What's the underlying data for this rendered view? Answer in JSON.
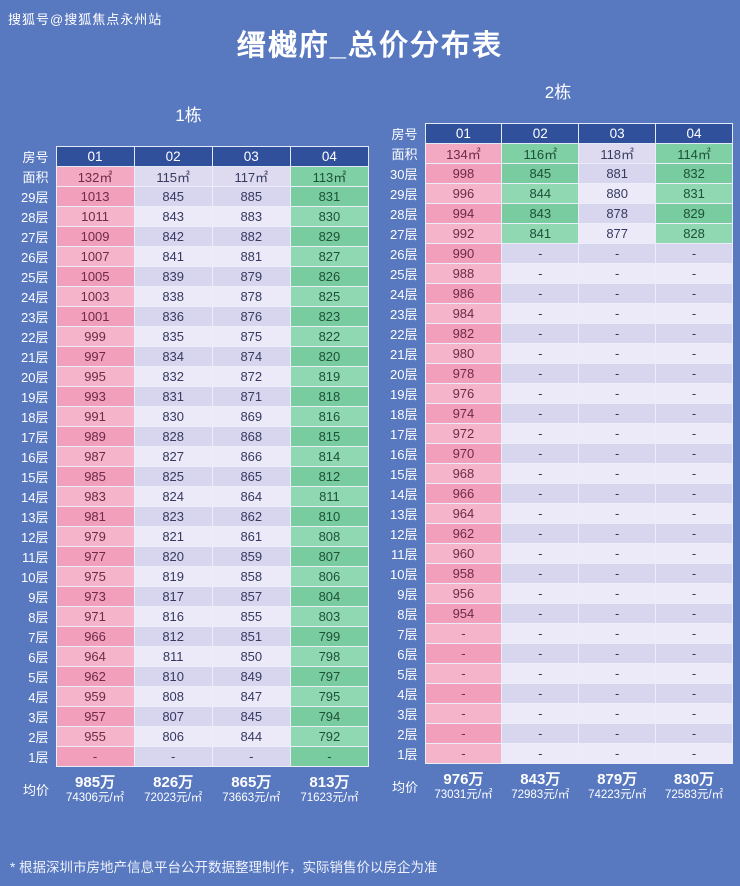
{
  "watermark": "搜狐号@搜狐焦点永州站",
  "title": "缙樾府_总价分布表",
  "footnote": "* 根据深圳市房地产信息平台公开数据整理制作，实际销售价以房企为准",
  "labels": {
    "room": "房号",
    "area": "面积",
    "avg": "均价"
  },
  "colors": {
    "background": "#5878c0",
    "header": "#30509c",
    "pink": "#f3a9c2",
    "lavender": "#dedbf1",
    "green": "#7fd0a5"
  },
  "chart_data": [
    {
      "type": "table",
      "title": "1栋",
      "rooms": [
        "01",
        "02",
        "03",
        "04"
      ],
      "areas": [
        "132㎡",
        "115㎡",
        "117㎡",
        "113㎡"
      ],
      "column_styles": [
        "pink",
        "lav",
        "lav",
        "green"
      ],
      "rows": [
        {
          "floor": "29层",
          "values": [
            "1013",
            "845",
            "885",
            "831"
          ]
        },
        {
          "floor": "28层",
          "values": [
            "1011",
            "843",
            "883",
            "830"
          ]
        },
        {
          "floor": "27层",
          "values": [
            "1009",
            "842",
            "882",
            "829"
          ]
        },
        {
          "floor": "26层",
          "values": [
            "1007",
            "841",
            "881",
            "827"
          ]
        },
        {
          "floor": "25层",
          "values": [
            "1005",
            "839",
            "879",
            "826"
          ]
        },
        {
          "floor": "24层",
          "values": [
            "1003",
            "838",
            "878",
            "825"
          ]
        },
        {
          "floor": "23层",
          "values": [
            "1001",
            "836",
            "876",
            "823"
          ]
        },
        {
          "floor": "22层",
          "values": [
            "999",
            "835",
            "875",
            "822"
          ]
        },
        {
          "floor": "21层",
          "values": [
            "997",
            "834",
            "874",
            "820"
          ]
        },
        {
          "floor": "20层",
          "values": [
            "995",
            "832",
            "872",
            "819"
          ]
        },
        {
          "floor": "19层",
          "values": [
            "993",
            "831",
            "871",
            "818"
          ]
        },
        {
          "floor": "18层",
          "values": [
            "991",
            "830",
            "869",
            "816"
          ]
        },
        {
          "floor": "17层",
          "values": [
            "989",
            "828",
            "868",
            "815"
          ]
        },
        {
          "floor": "16层",
          "values": [
            "987",
            "827",
            "866",
            "814"
          ]
        },
        {
          "floor": "15层",
          "values": [
            "985",
            "825",
            "865",
            "812"
          ]
        },
        {
          "floor": "14层",
          "values": [
            "983",
            "824",
            "864",
            "811"
          ]
        },
        {
          "floor": "13层",
          "values": [
            "981",
            "823",
            "862",
            "810"
          ]
        },
        {
          "floor": "12层",
          "values": [
            "979",
            "821",
            "861",
            "808"
          ]
        },
        {
          "floor": "11层",
          "values": [
            "977",
            "820",
            "859",
            "807"
          ]
        },
        {
          "floor": "10层",
          "values": [
            "975",
            "819",
            "858",
            "806"
          ]
        },
        {
          "floor": "9层",
          "values": [
            "973",
            "817",
            "857",
            "804"
          ]
        },
        {
          "floor": "8层",
          "values": [
            "971",
            "816",
            "855",
            "803"
          ]
        },
        {
          "floor": "7层",
          "values": [
            "966",
            "812",
            "851",
            "799"
          ]
        },
        {
          "floor": "6层",
          "values": [
            "964",
            "811",
            "850",
            "798"
          ]
        },
        {
          "floor": "5层",
          "values": [
            "962",
            "810",
            "849",
            "797"
          ]
        },
        {
          "floor": "4层",
          "values": [
            "959",
            "808",
            "847",
            "795"
          ]
        },
        {
          "floor": "3层",
          "values": [
            "957",
            "807",
            "845",
            "794"
          ]
        },
        {
          "floor": "2层",
          "values": [
            "955",
            "806",
            "844",
            "792"
          ]
        },
        {
          "floor": "1层",
          "values": [
            "-",
            "-",
            "-",
            "-"
          ]
        }
      ],
      "avg_prices": [
        "985万",
        "826万",
        "865万",
        "813万"
      ],
      "avg_units": [
        "74306元/㎡",
        "72023元/㎡",
        "73663元/㎡",
        "71623元/㎡"
      ]
    },
    {
      "type": "table",
      "title": "2栋",
      "rooms": [
        "01",
        "02",
        "03",
        "04"
      ],
      "areas": [
        "134㎡",
        "116㎡",
        "118㎡",
        "114㎡"
      ],
      "column_styles": [
        "pink",
        "greenlav",
        "lav",
        "greenlav"
      ],
      "rows": [
        {
          "floor": "30层",
          "values": [
            "998",
            "845",
            "881",
            "832"
          ]
        },
        {
          "floor": "29层",
          "values": [
            "996",
            "844",
            "880",
            "831"
          ]
        },
        {
          "floor": "28层",
          "values": [
            "994",
            "843",
            "878",
            "829"
          ]
        },
        {
          "floor": "27层",
          "values": [
            "992",
            "841",
            "877",
            "828"
          ]
        },
        {
          "floor": "26层",
          "values": [
            "990",
            "-",
            "-",
            "-"
          ]
        },
        {
          "floor": "25层",
          "values": [
            "988",
            "-",
            "-",
            "-"
          ]
        },
        {
          "floor": "24层",
          "values": [
            "986",
            "-",
            "-",
            "-"
          ]
        },
        {
          "floor": "23层",
          "values": [
            "984",
            "-",
            "-",
            "-"
          ]
        },
        {
          "floor": "22层",
          "values": [
            "982",
            "-",
            "-",
            "-"
          ]
        },
        {
          "floor": "21层",
          "values": [
            "980",
            "-",
            "-",
            "-"
          ]
        },
        {
          "floor": "20层",
          "values": [
            "978",
            "-",
            "-",
            "-"
          ]
        },
        {
          "floor": "19层",
          "values": [
            "976",
            "-",
            "-",
            "-"
          ]
        },
        {
          "floor": "18层",
          "values": [
            "974",
            "-",
            "-",
            "-"
          ]
        },
        {
          "floor": "17层",
          "values": [
            "972",
            "-",
            "-",
            "-"
          ]
        },
        {
          "floor": "16层",
          "values": [
            "970",
            "-",
            "-",
            "-"
          ]
        },
        {
          "floor": "15层",
          "values": [
            "968",
            "-",
            "-",
            "-"
          ]
        },
        {
          "floor": "14层",
          "values": [
            "966",
            "-",
            "-",
            "-"
          ]
        },
        {
          "floor": "13层",
          "values": [
            "964",
            "-",
            "-",
            "-"
          ]
        },
        {
          "floor": "12层",
          "values": [
            "962",
            "-",
            "-",
            "-"
          ]
        },
        {
          "floor": "11层",
          "values": [
            "960",
            "-",
            "-",
            "-"
          ]
        },
        {
          "floor": "10层",
          "values": [
            "958",
            "-",
            "-",
            "-"
          ]
        },
        {
          "floor": "9层",
          "values": [
            "956",
            "-",
            "-",
            "-"
          ]
        },
        {
          "floor": "8层",
          "values": [
            "954",
            "-",
            "-",
            "-"
          ]
        },
        {
          "floor": "7层",
          "values": [
            "-",
            "-",
            "-",
            "-"
          ]
        },
        {
          "floor": "6层",
          "values": [
            "-",
            "-",
            "-",
            "-"
          ]
        },
        {
          "floor": "5层",
          "values": [
            "-",
            "-",
            "-",
            "-"
          ]
        },
        {
          "floor": "4层",
          "values": [
            "-",
            "-",
            "-",
            "-"
          ]
        },
        {
          "floor": "3层",
          "values": [
            "-",
            "-",
            "-",
            "-"
          ]
        },
        {
          "floor": "2层",
          "values": [
            "-",
            "-",
            "-",
            "-"
          ]
        },
        {
          "floor": "1层",
          "values": [
            "-",
            "-",
            "-",
            "-"
          ]
        }
      ],
      "avg_prices": [
        "976万",
        "843万",
        "879万",
        "830万"
      ],
      "avg_units": [
        "73031元/㎡",
        "72983元/㎡",
        "74223元/㎡",
        "72583元/㎡"
      ]
    }
  ]
}
